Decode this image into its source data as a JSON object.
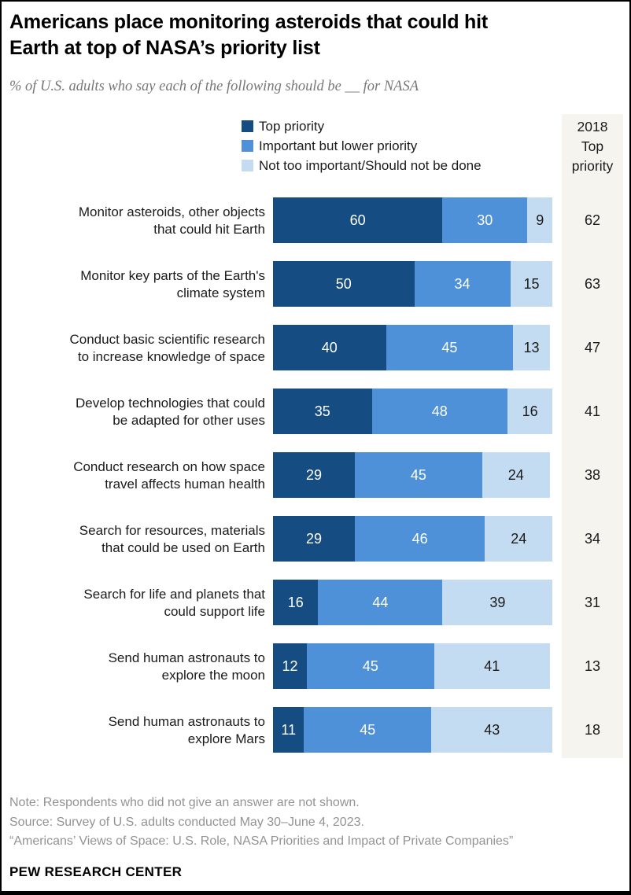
{
  "header": {
    "title_line1": "Americans place monitoring asteroids that could hit",
    "title_line2": "Earth at top of NASA’s priority list",
    "subtitle": "% of U.S. adults who say each of the following should be __ for NASA"
  },
  "right_column": {
    "header_lines": [
      "2018",
      "Top",
      "priority"
    ],
    "background": "#F5F4EF"
  },
  "chart_data": {
    "type": "bar",
    "stacked": true,
    "orientation": "horizontal",
    "xlim": [
      0,
      100
    ],
    "series_names": [
      "Top priority",
      "Important but lower priority",
      "Not too important/Should not be done"
    ],
    "colors": [
      "#154C82",
      "#4E91D8",
      "#C3DCF1"
    ],
    "value_label_colors": [
      "#ffffff",
      "#ffffff",
      "#1a1a1a"
    ],
    "rows": [
      {
        "label_lines": [
          "Monitor asteroids, other objects",
          "that could hit Earth"
        ],
        "values": [
          60,
          30,
          9
        ],
        "top_priority_2018": 62
      },
      {
        "label_lines": [
          "Monitor key parts of the Earth's",
          "climate system"
        ],
        "values": [
          50,
          34,
          15
        ],
        "top_priority_2018": 63
      },
      {
        "label_lines": [
          "Conduct basic scientific research",
          "to increase knowledge of space"
        ],
        "values": [
          40,
          45,
          13
        ],
        "top_priority_2018": 47
      },
      {
        "label_lines": [
          "Develop technologies that could",
          "be adapted for other uses"
        ],
        "values": [
          35,
          48,
          16
        ],
        "top_priority_2018": 41
      },
      {
        "label_lines": [
          "Conduct research on how space",
          "travel affects human health"
        ],
        "values": [
          29,
          45,
          24
        ],
        "top_priority_2018": 38
      },
      {
        "label_lines": [
          "Search for resources, materials",
          "that could be used on Earth"
        ],
        "values": [
          29,
          46,
          24
        ],
        "top_priority_2018": 34
      },
      {
        "label_lines": [
          "Search for life and planets that",
          "could support life"
        ],
        "values": [
          16,
          44,
          39
        ],
        "top_priority_2018": 31
      },
      {
        "label_lines": [
          "Send human astronauts to",
          "explore the moon"
        ],
        "values": [
          12,
          45,
          41
        ],
        "top_priority_2018": 13
      },
      {
        "label_lines": [
          "Send human astronauts to",
          "explore Mars"
        ],
        "values": [
          11,
          45,
          43
        ],
        "top_priority_2018": 18
      }
    ]
  },
  "footer": {
    "note": "Note: Respondents who did not give an answer are not shown.",
    "source": "Source: Survey of U.S. adults conducted May 30–June 4, 2023.",
    "citation": "“Americans’ Views of Space: U.S. Role, NASA Priorities and Impact of Private Companies”",
    "brand": "PEW RESEARCH CENTER"
  }
}
